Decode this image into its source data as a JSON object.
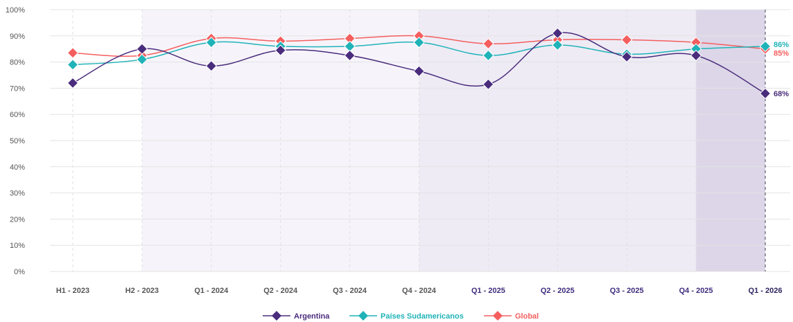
{
  "chart_data": {
    "type": "line",
    "categories": [
      "H1 - 2023",
      "H2 - 2023",
      "Q1 - 2024",
      "Q2 - 2024",
      "Q3 - 2024",
      "Q4 - 2024",
      "Q1 - 2025",
      "Q2 - 2025",
      "Q3 - 2025",
      "Q4 - 2025",
      "Q1 - 2026"
    ],
    "ylim": [
      0,
      100
    ],
    "yticks": [
      "0%",
      "10%",
      "20%",
      "30%",
      "40%",
      "50%",
      "60%",
      "70%",
      "80%",
      "90%",
      "100%"
    ],
    "series": [
      {
        "name": "Argentina",
        "color": "#4a2c7d",
        "values": [
          72,
          85,
          78.5,
          84.5,
          82.5,
          76.5,
          71.5,
          91,
          82,
          82.5,
          68
        ],
        "end_label": "68%"
      },
      {
        "name": "Países Sudamericanos",
        "color": "#1fb3b8",
        "values": [
          79,
          81,
          87.5,
          86,
          86,
          87.5,
          82.5,
          86.5,
          83,
          85,
          86
        ],
        "end_label": "86%"
      },
      {
        "name": "Global",
        "color": "#f55e5e",
        "values": [
          83.5,
          82.5,
          89,
          88,
          89,
          90,
          87,
          88.5,
          88.5,
          87.5,
          85
        ],
        "end_label": "85%"
      }
    ],
    "legend_position": "bottom-center",
    "grid": true
  }
}
